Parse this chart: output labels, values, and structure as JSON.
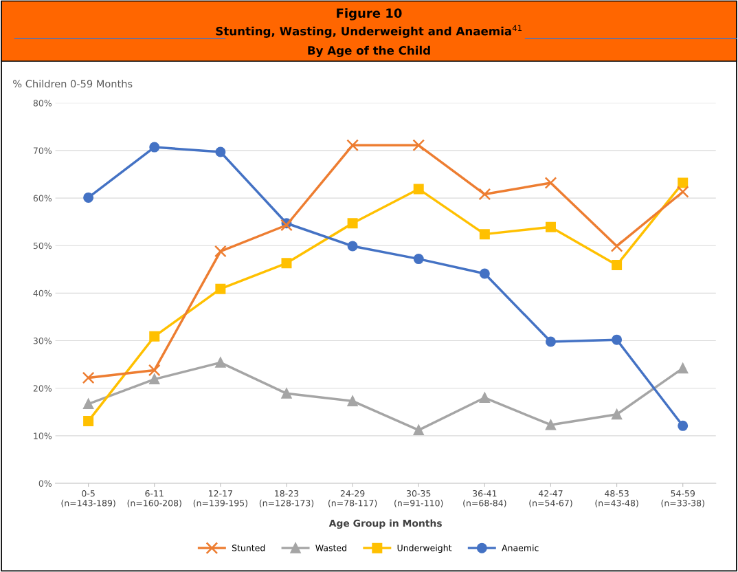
{
  "chart_data": {
    "type": "line",
    "title": "Figure 10",
    "subtitle": "Stunting, Wasting, Underweight and Anaemia$^{41}$\nBy Age of the Child",
    "ylabel": "% Children 0-59 Months",
    "xlabel": "Age Group in Months",
    "categories": [
      "0-5\n(n=143-189)",
      "6-11\n(n=160-208)",
      "12-17\n(n=139-195)",
      "18-23\n(n=128-173)",
      "24-29\n(n=78-117)",
      "30-35\n(n=91-110)",
      "36-41\n(n=68-84)",
      "42-47\n(n=54-67)",
      "48-53\n(n=43-48)",
      "54-59\n(n=33-38)"
    ],
    "series": [
      {
        "name": "Stunted",
        "color": "#ed7d31",
        "marker": "cross",
        "values": [
          22.2,
          23.8,
          48.8,
          54.3,
          71.1,
          71.1,
          60.8,
          63.2,
          49.9,
          61.3
        ]
      },
      {
        "name": "Wasted",
        "color": "#a5a5a5",
        "marker": "triangle",
        "values": [
          16.7,
          21.9,
          25.4,
          18.9,
          17.3,
          11.2,
          18.0,
          12.3,
          14.5,
          24.2
        ]
      },
      {
        "name": "Underweight",
        "color": "#ffc000",
        "marker": "square",
        "values": [
          13.1,
          30.9,
          40.9,
          46.3,
          54.7,
          61.9,
          52.4,
          53.9,
          45.9,
          63.2
        ]
      },
      {
        "name": "Anaemic",
        "color": "#4472c4",
        "marker": "circle",
        "values": [
          60.1,
          70.7,
          69.7,
          54.7,
          49.9,
          47.2,
          44.1,
          29.8,
          30.2,
          12.1
        ]
      }
    ],
    "ylim": [
      0,
      80
    ],
    "yticks": [
      {
        "value": 0,
        "label": "0%"
      },
      {
        "value": 10,
        "label": "10%"
      },
      {
        "value": 20,
        "label": "20%"
      },
      {
        "value": 30,
        "label": "30%"
      },
      {
        "value": 40,
        "label": "40%"
      },
      {
        "value": 50,
        "label": "50%"
      },
      {
        "value": 60,
        "label": "60%"
      },
      {
        "value": 70,
        "label": "70%"
      },
      {
        "value": 80,
        "label": "80%"
      }
    ],
    "grid": "y",
    "legend": "bottom",
    "line_style": "solid"
  }
}
